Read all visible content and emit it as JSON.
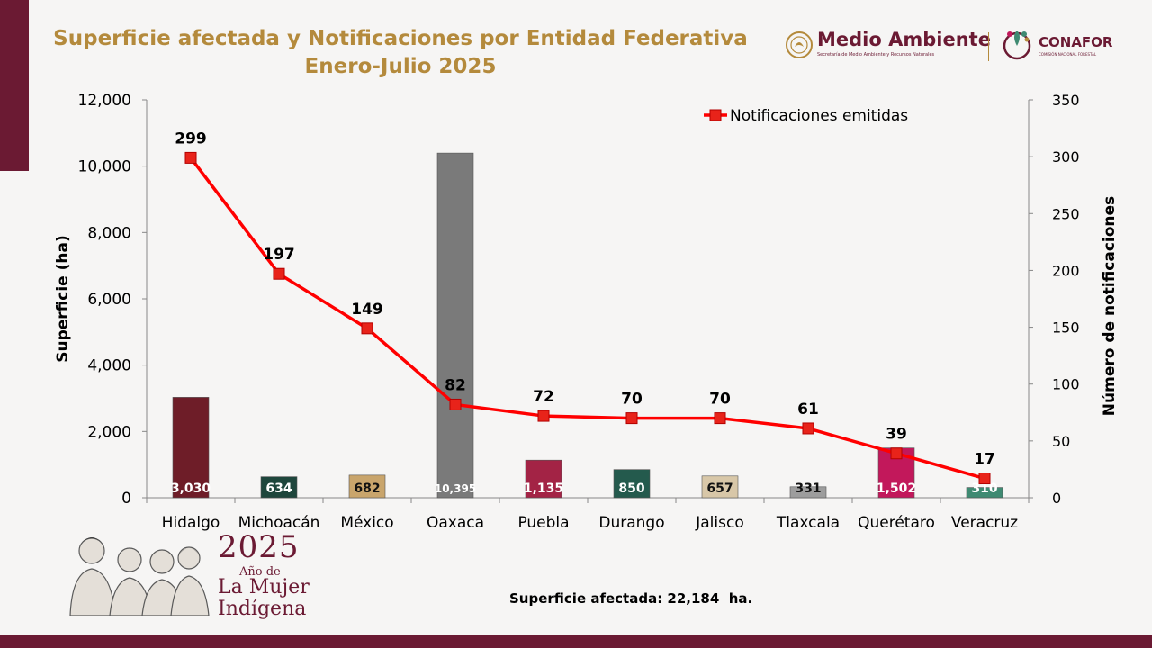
{
  "header": {
    "title_line1": "Superficie afectada y Notificaciones por Entidad Federativa",
    "title_line2": "Enero-Julio 2025"
  },
  "logos": {
    "medio_ambiente": "Medio Ambiente",
    "medio_ambiente_sub": "Secretaría de Medio Ambiente y Recursos Naturales",
    "conafor": "CONAFOR",
    "conafor_sub": "COMISIÓN NACIONAL FORESTAL"
  },
  "footer": {
    "year": "2025",
    "year_subtitle": "Año de",
    "year_line1": "La Mujer",
    "year_line2": "Indígena",
    "total_note": "Superficie afectada: 22,184  ha."
  },
  "colors": {
    "brand": "#6b1a33",
    "title": "#b48a3c",
    "line": "#ff0000",
    "marker": "#e8231a"
  },
  "chart_data": {
    "type": "bar",
    "categories": [
      "Hidalgo",
      "Michoacán",
      "México",
      "Oaxaca",
      "Puebla",
      "Durango",
      "Jalisco",
      "Tlaxcala",
      "Querétaro",
      "Veracruz"
    ],
    "series": [
      {
        "values": [
          3030,
          634,
          682,
          10395,
          1135,
          850,
          657,
          331,
          1502,
          310
        ],
        "value_labels": [
          "3,030",
          "634",
          "682",
          "10,395",
          "1,135",
          "850",
          "657",
          "331",
          "1,502",
          "310"
        ],
        "colors": [
          "#6e1d28",
          "#1e463c",
          "#c9a56c",
          "#7a7a7a",
          "#a32345",
          "#245a4d",
          "#d8c7a8",
          "#9d9d9d",
          "#c2185b",
          "#3f8a72"
        ],
        "axis": "left"
      },
      {
        "name": "Notificaciones emitidas",
        "type": "line",
        "values": [
          299,
          197,
          149,
          82,
          72,
          70,
          70,
          61,
          39,
          17
        ],
        "axis": "right"
      }
    ],
    "ylabel": "Superficie (ha)",
    "y2label": "Número de notificaciones",
    "ylim": [
      0,
      12000
    ],
    "y2lim": [
      0,
      350
    ],
    "yticks": [
      0,
      2000,
      4000,
      6000,
      8000,
      10000,
      12000
    ],
    "ytick_labels": [
      "0",
      "2,000",
      "4,000",
      "6,000",
      "8,000",
      "10,000",
      "12,000"
    ],
    "y2ticks": [
      0,
      50,
      100,
      150,
      200,
      250,
      300,
      350
    ],
    "y2tick_labels": [
      "0",
      "50",
      "100",
      "150",
      "200",
      "250",
      "300",
      "350"
    ],
    "legend_position": "top-right",
    "grid": false
  }
}
